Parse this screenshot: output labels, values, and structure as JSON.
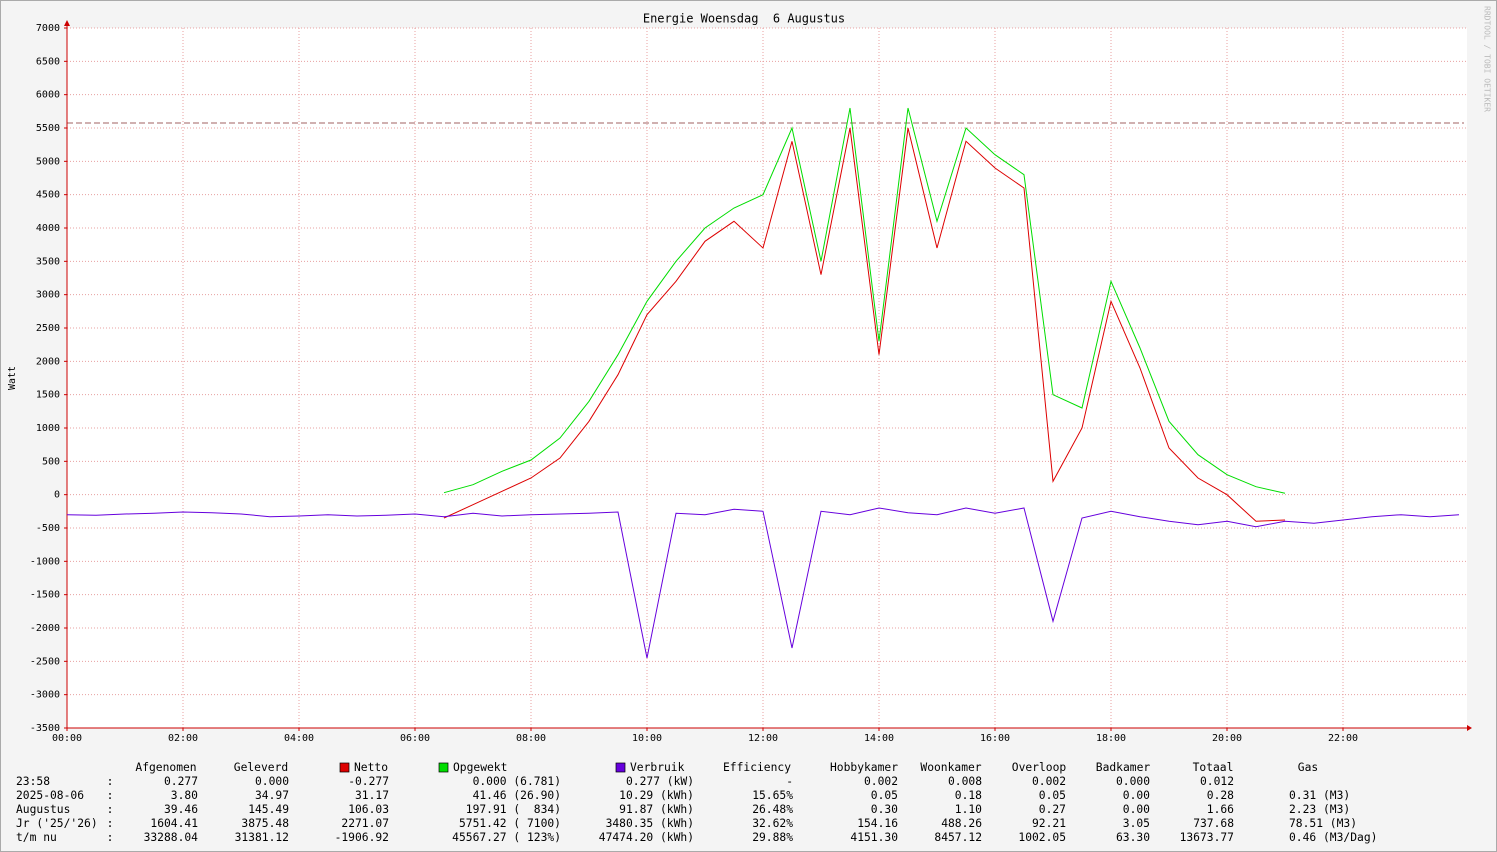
{
  "chart_data": {
    "type": "line",
    "title": "Energie Woensdag  6 Augustus",
    "y_label": "Watt",
    "watermark": "RRDTOOL / TOBI OETIKER",
    "x": [
      0,
      0.5,
      1,
      1.5,
      2,
      2.5,
      3,
      3.5,
      4,
      4.5,
      5,
      5.5,
      6,
      6.5,
      7,
      7.5,
      8,
      8.5,
      9,
      9.5,
      10,
      10.5,
      11,
      11.5,
      12,
      12.5,
      13,
      13.5,
      14,
      14.5,
      15,
      15.5,
      16,
      16.5,
      17,
      17.5,
      18,
      18.5,
      19,
      19.5,
      20,
      20.5,
      21,
      21.5,
      22,
      22.5,
      23,
      23.5,
      24
    ],
    "xlim": [
      0,
      24
    ],
    "xticks": [
      {
        "value": 0,
        "label": "00:00"
      },
      {
        "value": 2,
        "label": "02:00"
      },
      {
        "value": 4,
        "label": "04:00"
      },
      {
        "value": 6,
        "label": "06:00"
      },
      {
        "value": 8,
        "label": "08:00"
      },
      {
        "value": 10,
        "label": "10:00"
      },
      {
        "value": 12,
        "label": "12:00"
      },
      {
        "value": 14,
        "label": "14:00"
      },
      {
        "value": 16,
        "label": "16:00"
      },
      {
        "value": 18,
        "label": "18:00"
      },
      {
        "value": 20,
        "label": "20:00"
      },
      {
        "value": 22,
        "label": "22:00"
      }
    ],
    "ylim": [
      -3500,
      7000
    ],
    "yticks": [
      7000,
      6500,
      6000,
      5500,
      5000,
      4500,
      4000,
      3500,
      3000,
      2500,
      2000,
      1500,
      1000,
      500,
      0,
      -500,
      -1000,
      -1500,
      -2000,
      -2500,
      -3000,
      -3500
    ],
    "grid": true,
    "reference_line": 5575,
    "series": [
      {
        "name": "Opgewekt",
        "color": "#00dd00",
        "values": [
          null,
          null,
          null,
          null,
          null,
          null,
          null,
          null,
          null,
          null,
          null,
          null,
          null,
          30,
          150,
          350,
          520,
          850,
          1400,
          2100,
          2900,
          3500,
          4000,
          4300,
          4500,
          5500,
          3500,
          5800,
          2300,
          5800,
          4100,
          5500,
          5100,
          4800,
          1500,
          1300,
          3200,
          2200,
          1100,
          600,
          300,
          120,
          20,
          null,
          null,
          null,
          null,
          null,
          null
        ]
      },
      {
        "name": "Netto",
        "color": "#dd0000",
        "values": [
          null,
          null,
          null,
          null,
          null,
          null,
          null,
          null,
          null,
          null,
          null,
          null,
          null,
          -350,
          -150,
          50,
          250,
          550,
          1100,
          1800,
          2700,
          3200,
          3800,
          4100,
          3700,
          5300,
          3300,
          5500,
          2100,
          5500,
          3700,
          5300,
          4900,
          4600,
          200,
          1000,
          2900,
          1900,
          700,
          250,
          0,
          -400,
          -380,
          null,
          null,
          null,
          null,
          null,
          null
        ]
      },
      {
        "name": "Verbruik",
        "color": "#6600dd",
        "values": [
          -300,
          -310,
          -290,
          -280,
          -260,
          -270,
          -290,
          -330,
          -320,
          -300,
          -320,
          -310,
          -290,
          -330,
          -280,
          -320,
          -300,
          -290,
          -280,
          -260,
          -2450,
          -280,
          -300,
          -220,
          -250,
          -2300,
          -250,
          -300,
          -200,
          -270,
          -300,
          -200,
          -280,
          -200,
          -1900,
          -350,
          -250,
          -330,
          -400,
          -450,
          -400,
          -480,
          -400,
          -430,
          -380,
          -330,
          -300,
          -330,
          -300
        ]
      }
    ]
  },
  "table": {
    "headers": [
      "Afgenomen",
      "Geleverd",
      "Efficiency",
      "Hobbykamer",
      "Woonkamer",
      "Overloop",
      "Badkamer",
      "Totaal",
      "Gas"
    ],
    "rows": [
      [
        "23:58",
        ":",
        "0.277",
        "0.000",
        "-0.277",
        "0.000 (6.781)",
        "0.277 (kW)",
        "-",
        "0.002",
        "0.008",
        "0.002",
        "0.000",
        "0.012"
      ],
      [
        "2025-08-06",
        ":",
        "3.80",
        "34.97",
        "31.17",
        "41.46 (26.90)",
        "10.29 (kWh)",
        "15.65%",
        "0.05",
        "0.18",
        "0.05",
        "0.00",
        "0.28",
        "0.31 (M3)"
      ],
      [
        "Augustus",
        ":",
        "39.46",
        "145.49",
        "106.03",
        "197.91 (  834)",
        "91.87 (kWh)",
        "26.48%",
        "0.30",
        "1.10",
        "0.27",
        "0.00",
        "1.66",
        "2.23 (M3)"
      ],
      [
        "Jr ('25/'26)",
        ":",
        "1604.41",
        "3875.48",
        "2271.07",
        "5751.42 ( 7100)",
        "3480.35 (kWh)",
        "32.62%",
        "154.16",
        "488.26",
        "92.21",
        "3.05",
        "737.68",
        "78.51 (M3)"
      ],
      [
        "t/m nu",
        ":",
        "33288.04",
        "31381.12",
        "-1906.92",
        "45567.27 ( 123%)",
        "47474.20 (kWh)",
        "29.88%",
        "4151.30",
        "8457.12",
        "1002.05",
        "63.30",
        "13673.77",
        "0.46 (M3/Dag)"
      ]
    ]
  }
}
